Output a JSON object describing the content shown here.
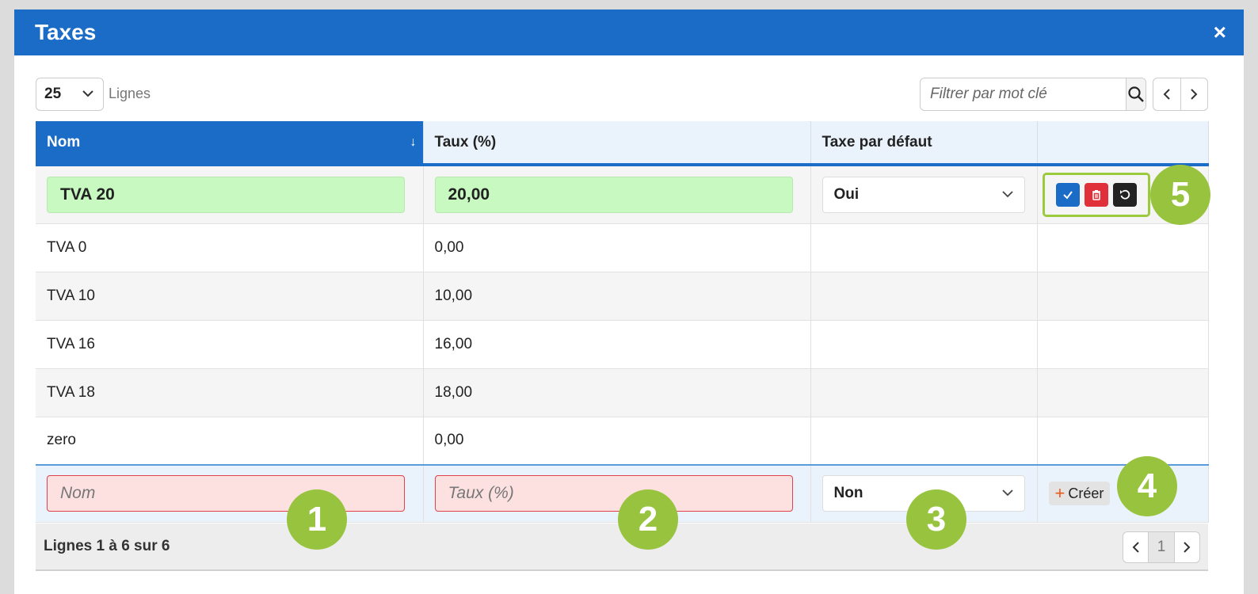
{
  "modal": {
    "title": "Taxes",
    "close": "×"
  },
  "toolbar": {
    "lines_value": "25",
    "lines_label": "Lignes",
    "search_placeholder": "Filtrer par mot clé"
  },
  "columns": [
    "Nom",
    "Taux (%)",
    "Taxe par défaut",
    ""
  ],
  "edit_row": {
    "nom": "TVA 20",
    "taux": "20,00",
    "defaut": "Oui"
  },
  "rows": [
    {
      "nom": "TVA 0",
      "taux": "0,00",
      "defaut": ""
    },
    {
      "nom": "TVA 10",
      "taux": "10,00",
      "defaut": ""
    },
    {
      "nom": "TVA 16",
      "taux": "16,00",
      "defaut": ""
    },
    {
      "nom": "TVA 18",
      "taux": "18,00",
      "defaut": ""
    },
    {
      "nom": "zero",
      "taux": "0,00",
      "defaut": ""
    }
  ],
  "new_row": {
    "nom_placeholder": "Nom",
    "taux_placeholder": "Taux (%)",
    "defaut": "Non",
    "create_label": "Créer"
  },
  "footer": {
    "info": "Lignes 1 à 6 sur 6",
    "page": "1"
  },
  "badges": [
    "1",
    "2",
    "3",
    "4",
    "5"
  ],
  "colors": {
    "primary": "#1a6cc7",
    "badge": "#98c33e",
    "valid": "#c7f9c0",
    "invalid": "#fde1e1"
  }
}
